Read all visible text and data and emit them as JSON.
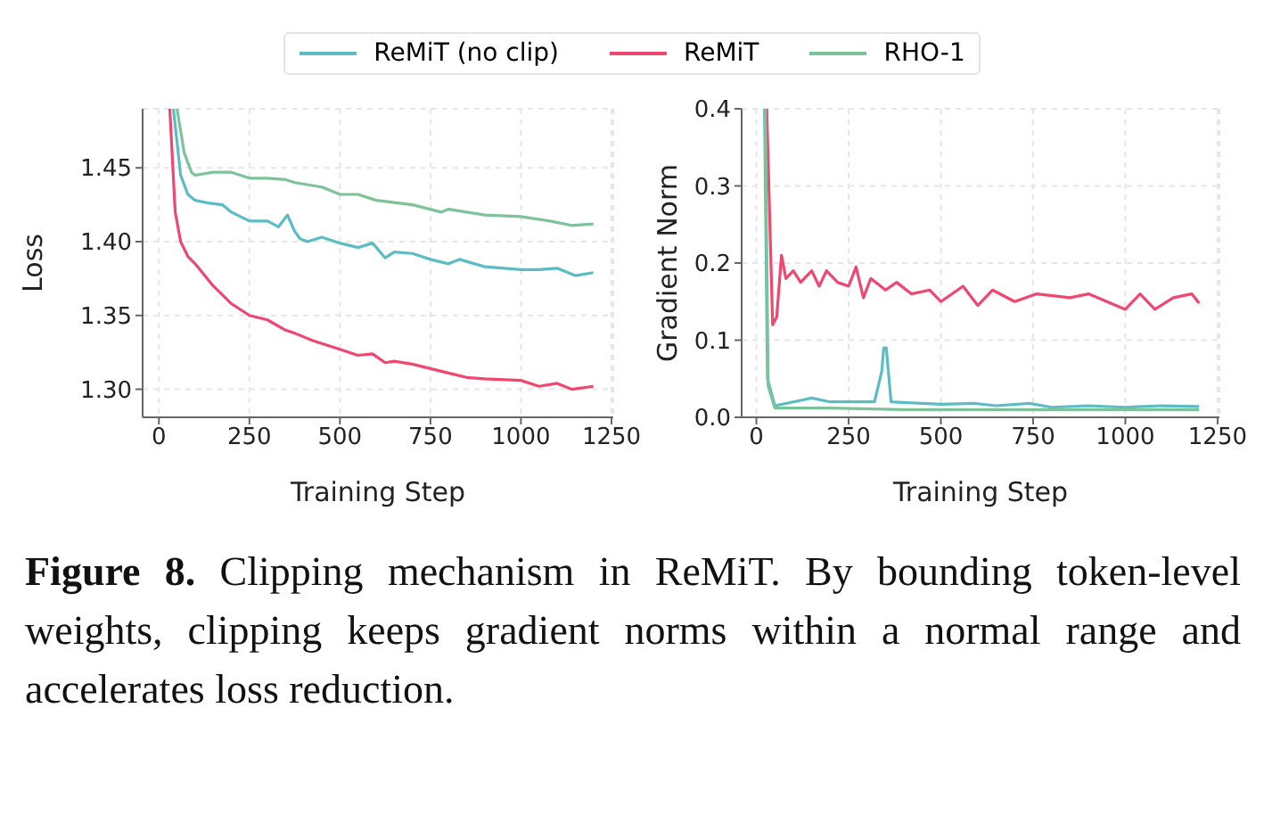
{
  "chart_data": [
    {
      "type": "line",
      "xlabel": "Training Step",
      "ylabel": "Loss",
      "xlim": [
        -45,
        1255
      ],
      "ylim": [
        1.281,
        1.49
      ],
      "xticks": [
        0,
        250,
        500,
        750,
        1000,
        {
          "value": 1250,
          "label": "1250"
        }
      ],
      "yticks": [
        {
          "value": 1.3,
          "label": "1.30"
        },
        1.35,
        {
          "value": 1.4,
          "label": "1.40"
        },
        1.45
      ],
      "grid": true,
      "legend": "top",
      "line_style": "solid",
      "marker": "none",
      "series": [
        {
          "name": "ReMiT (no clip)",
          "color": "#5bbcc4",
          "x": [
            40,
            60,
            80,
            100,
            140,
            175,
            200,
            250,
            300,
            330,
            355,
            375,
            390,
            410,
            450,
            500,
            550,
            590,
            625,
            650,
            700,
            750,
            800,
            830,
            900,
            1000,
            1050,
            1100,
            1150,
            1200
          ],
          "values": [
            1.49,
            1.445,
            1.432,
            1.428,
            1.426,
            1.425,
            1.42,
            1.414,
            1.414,
            1.41,
            1.418,
            1.407,
            1.402,
            1.4,
            1.403,
            1.399,
            1.396,
            1.399,
            1.389,
            1.393,
            1.392,
            1.388,
            1.385,
            1.388,
            1.383,
            1.381,
            1.381,
            1.382,
            1.377,
            1.379
          ]
        },
        {
          "name": "ReMiT",
          "color": "#ef476f",
          "x": [
            30,
            45,
            60,
            80,
            100,
            150,
            200,
            250,
            300,
            350,
            375,
            425,
            475,
            500,
            550,
            590,
            625,
            650,
            700,
            750,
            800,
            850,
            900,
            1000,
            1050,
            1100,
            1140,
            1200
          ],
          "values": [
            1.49,
            1.42,
            1.4,
            1.39,
            1.385,
            1.37,
            1.358,
            1.35,
            1.347,
            1.34,
            1.338,
            1.333,
            1.329,
            1.327,
            1.323,
            1.324,
            1.318,
            1.319,
            1.317,
            1.314,
            1.311,
            1.308,
            1.307,
            1.306,
            1.302,
            1.304,
            1.3,
            1.302
          ]
        },
        {
          "name": "RHO-1",
          "color": "#7dc39a",
          "x": [
            50,
            70,
            90,
            100,
            150,
            200,
            250,
            300,
            350,
            375,
            450,
            500,
            550,
            600,
            700,
            780,
            800,
            900,
            1000,
            1080,
            1140,
            1200
          ],
          "values": [
            1.49,
            1.46,
            1.447,
            1.445,
            1.447,
            1.447,
            1.443,
            1.443,
            1.442,
            1.44,
            1.437,
            1.432,
            1.432,
            1.428,
            1.425,
            1.42,
            1.422,
            1.418,
            1.417,
            1.414,
            1.411,
            1.412
          ]
        }
      ]
    },
    {
      "type": "line",
      "xlabel": "Training Step",
      "ylabel": "Gradient Norm",
      "xlim": [
        -40,
        1255
      ],
      "ylim": [
        0,
        0.4
      ],
      "xticks": [
        0,
        250,
        500,
        750,
        1000,
        1250
      ],
      "yticks": [
        {
          "value": 0,
          "label": "0.0"
        },
        0.1,
        0.2,
        0.3,
        0.4
      ],
      "grid": true,
      "line_style": "solid",
      "marker": "none",
      "annotations": [
        "Figure 8.",
        "Clipping mechanism in ReMiT. By bounding token-level weights, clipping keeps gradient norms within a normal range and accelerates loss reduction."
      ],
      "series": [
        {
          "color": "#5bbcc4",
          "x": [
            22,
            30,
            50,
            100,
            150,
            200,
            250,
            320,
            340,
            345,
            352,
            365,
            450,
            500,
            590,
            650,
            740,
            800,
            900,
            1000,
            1100,
            1200
          ],
          "values": [
            0.4,
            0.05,
            0.015,
            0.02,
            0.025,
            0.02,
            0.02,
            0.02,
            0.06,
            0.09,
            0.09,
            0.02,
            0.018,
            0.017,
            0.018,
            0.015,
            0.018,
            0.013,
            0.015,
            0.013,
            0.015,
            0.014
          ]
        },
        {
          "color": "#ef476f",
          "x": [
            28,
            44,
            55,
            68,
            80,
            100,
            120,
            150,
            170,
            190,
            220,
            250,
            270,
            290,
            310,
            350,
            380,
            420,
            470,
            500,
            560,
            600,
            640,
            700,
            760,
            850,
            900,
            1000,
            1040,
            1080,
            1130,
            1180,
            1200
          ],
          "values": [
            0.4,
            0.12,
            0.13,
            0.21,
            0.18,
            0.19,
            0.175,
            0.19,
            0.17,
            0.19,
            0.175,
            0.17,
            0.195,
            0.155,
            0.18,
            0.165,
            0.175,
            0.16,
            0.165,
            0.15,
            0.17,
            0.145,
            0.165,
            0.15,
            0.16,
            0.155,
            0.16,
            0.14,
            0.16,
            0.14,
            0.155,
            0.16,
            0.148
          ]
        },
        {
          "color": "#7dc39a",
          "x": [
            24,
            32,
            50,
            200,
            400,
            1200
          ],
          "values": [
            0.4,
            0.04,
            0.012,
            0.012,
            0.01,
            0.01
          ]
        }
      ]
    }
  ]
}
